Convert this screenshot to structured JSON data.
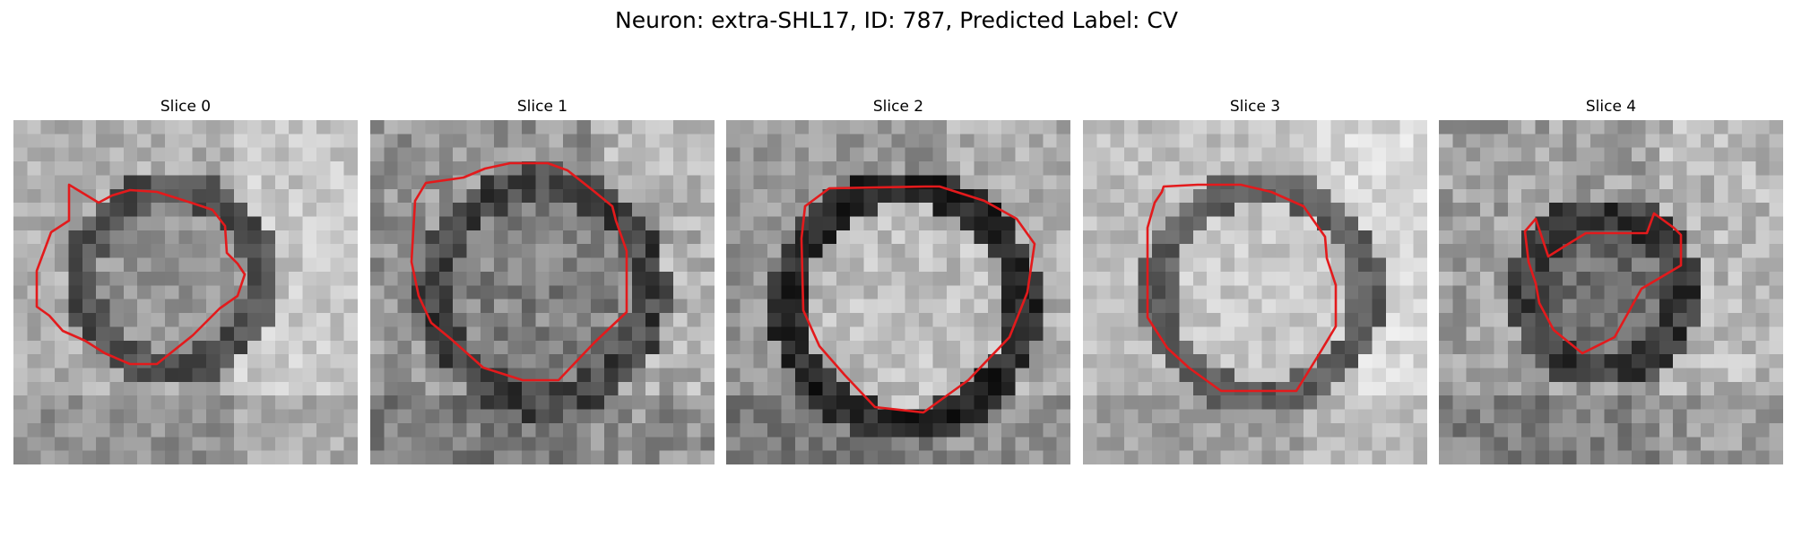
{
  "figure": {
    "suptitle": "Neuron: extra-SHL17, ID: 787, Predicted Label: CV",
    "contour_color": "#e31a1c",
    "colormap": "gray"
  },
  "panels": [
    {
      "title": "Slice 0"
    },
    {
      "title": "Slice 1"
    },
    {
      "title": "Slice 2"
    },
    {
      "title": "Slice 3"
    },
    {
      "title": "Slice 4"
    }
  ]
}
